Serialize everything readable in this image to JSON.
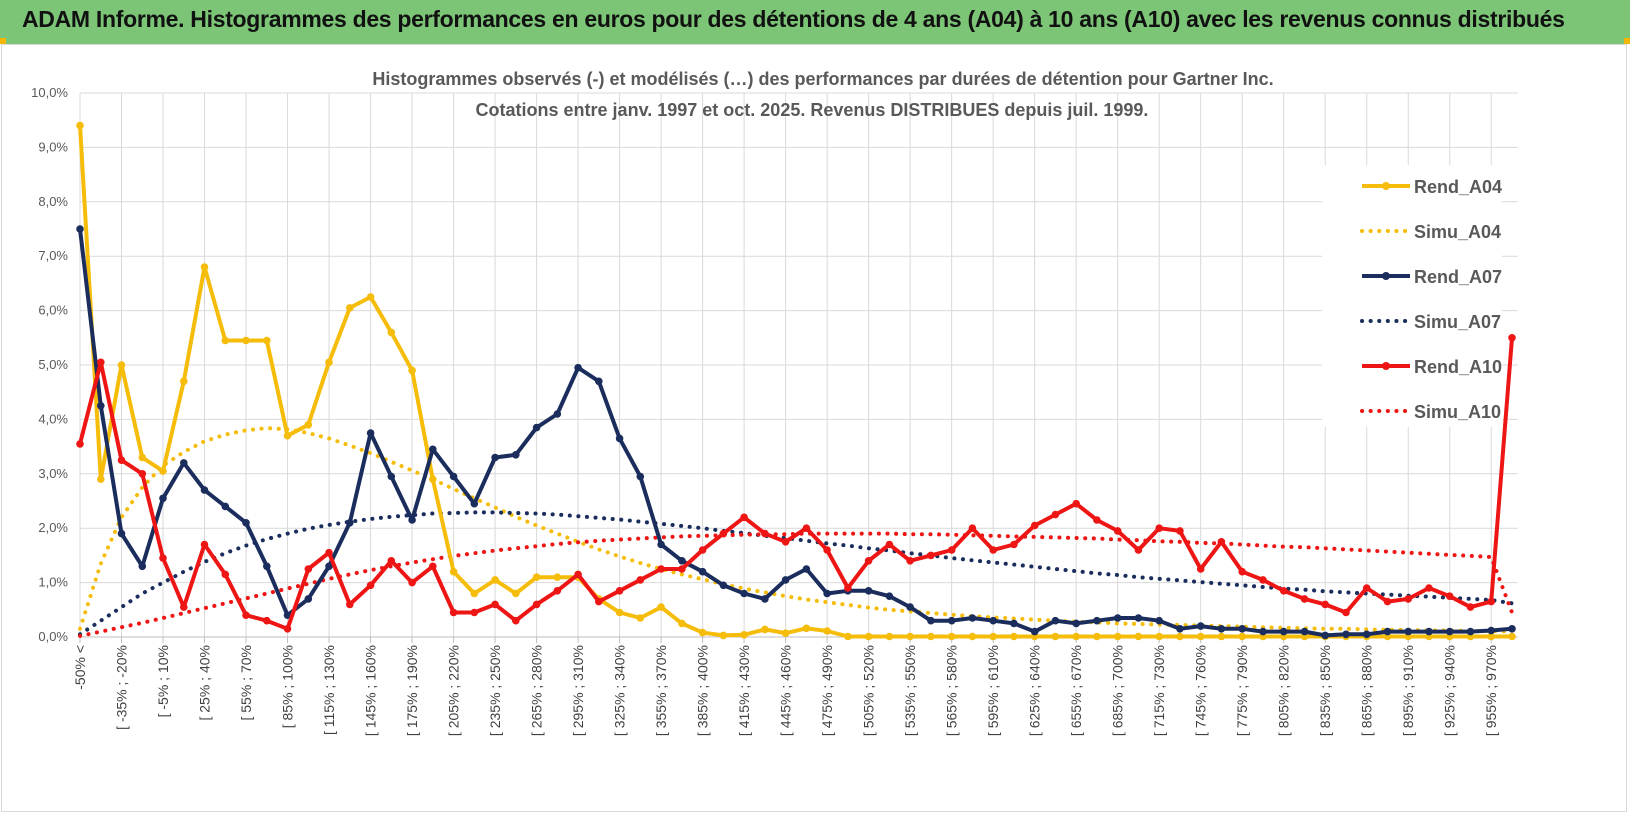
{
  "banner": {
    "title": "ADAM Informe. Histogrammes des performances en euros pour des détentions de 4 ans (A04) à 10 ans (A10) avec les revenus connus distribués"
  },
  "colors": {
    "banner": "#7cc576",
    "a04": "#f5bd0a",
    "a07": "#1a2d5c",
    "a10": "#ee1515",
    "grid": "#d9d9d9"
  },
  "chart_data": {
    "type": "line",
    "title": "Histogrammes observés (-) et modélisés (…) des performances par durées de détention pour Gartner Inc.",
    "subtitle": "Cotations entre janv. 1997 et oct. 2025. Revenus DISTRIBUES depuis juil. 1999.",
    "xlabel": "",
    "ylabel": "",
    "ylim": [
      0,
      10
    ],
    "grid": true,
    "legend_position": "right",
    "y_ticks": [
      "0,0%",
      "1,0%",
      "2,0%",
      "3,0%",
      "4,0%",
      "5,0%",
      "6,0%",
      "7,0%",
      "8,0%",
      "9,0%",
      "10,0%"
    ],
    "x_tick_labels": [
      "-50% <",
      "[ -35% ; -20%",
      "[ -5% ; 10%",
      "[ 25% ; 40%",
      "[ 55% ; 70%",
      "[ 85% ; 100%",
      "[ 115% ; 130%",
      "[ 145% ; 160%",
      "[ 175% ; 190%",
      "[ 205% ; 220%",
      "[ 235% ; 250%",
      "[ 265% ; 280%",
      "[ 295% ; 310%",
      "[ 325% ; 340%",
      "[ 355% ; 370%",
      "[ 385% ; 400%",
      "[ 415% ; 430%",
      "[ 445% ; 460%",
      "[ 475% ; 490%",
      "[ 505% ; 520%",
      "[ 535% ; 550%",
      "[ 565% ; 580%",
      "[ 595% ; 610%",
      "[ 625% ; 640%",
      "[ 655% ; 670%",
      "[ 685% ; 700%",
      "[ 715% ; 730%",
      "[ 745% ; 760%",
      "[ 775% ; 790%",
      "[ 805% ; 820%",
      "[ 835% ; 850%",
      "[ 865% ; 880%",
      "[ 895% ; 910%",
      "[ 925% ; 940%",
      "[ 955% ; 970%"
    ],
    "n_categories": 70,
    "series": [
      {
        "name": "Rend_A04",
        "style": "solid",
        "color": "#f5bd0a",
        "values": [
          9.4,
          2.9,
          5.0,
          3.3,
          3.05,
          4.7,
          6.8,
          5.45,
          5.45,
          5.45,
          3.7,
          3.9,
          5.05,
          6.05,
          6.25,
          5.6,
          4.9,
          2.9,
          1.2,
          0.8,
          1.05,
          0.8,
          1.1,
          1.1,
          1.1,
          0.7,
          0.45,
          0.35,
          0.55,
          0.25,
          0.08,
          0.03,
          0.04,
          0.14,
          0.07,
          0.16,
          0.11,
          0.01,
          0.01,
          0.01,
          0.01,
          0.01,
          0.01,
          0.01,
          0.01,
          0.01,
          0.01,
          0.01,
          0.01,
          0.01,
          0.01,
          0.01,
          0.01,
          0.01,
          0.01,
          0.01,
          0.01,
          0.01,
          0.01,
          0.01,
          0.01,
          0.01,
          0.01,
          0.01,
          0.01,
          0.01,
          0.01,
          0.01,
          0.01,
          0.01
        ]
      },
      {
        "name": "Simu_A04",
        "style": "dotted",
        "color": "#f5bd0a",
        "values": [
          0.15,
          1.35,
          2.2,
          2.75,
          3.15,
          3.4,
          3.6,
          3.72,
          3.8,
          3.84,
          3.82,
          3.75,
          3.65,
          3.52,
          3.38,
          3.22,
          3.06,
          2.9,
          2.72,
          2.55,
          2.38,
          2.21,
          2.05,
          1.9,
          1.75,
          1.61,
          1.48,
          1.36,
          1.25,
          1.15,
          1.06,
          0.97,
          0.89,
          0.82,
          0.75,
          0.69,
          0.64,
          0.59,
          0.54,
          0.5,
          0.47,
          0.44,
          0.41,
          0.38,
          0.36,
          0.34,
          0.32,
          0.3,
          0.28,
          0.27,
          0.25,
          0.24,
          0.23,
          0.22,
          0.21,
          0.2,
          0.19,
          0.18,
          0.17,
          0.16,
          0.15,
          0.15,
          0.14,
          0.13,
          0.13,
          0.12,
          0.12,
          0.11,
          0.11,
          0.1
        ]
      },
      {
        "name": "Rend_A07",
        "style": "solid",
        "color": "#1a2d5c",
        "values": [
          7.5,
          4.25,
          1.9,
          1.3,
          2.55,
          3.2,
          2.7,
          2.4,
          2.1,
          1.3,
          0.4,
          0.7,
          1.3,
          2.1,
          3.75,
          2.95,
          2.15,
          3.45,
          2.95,
          2.45,
          3.3,
          3.35,
          3.85,
          4.1,
          4.95,
          4.7,
          3.65,
          2.95,
          1.7,
          1.4,
          1.2,
          0.95,
          0.8,
          0.7,
          1.05,
          1.25,
          0.8,
          0.85,
          0.85,
          0.75,
          0.55,
          0.3,
          0.3,
          0.35,
          0.3,
          0.25,
          0.1,
          0.3,
          0.25,
          0.3,
          0.35,
          0.35,
          0.3,
          0.15,
          0.2,
          0.15,
          0.15,
          0.1,
          0.1,
          0.1,
          0.03,
          0.05,
          0.05,
          0.1,
          0.1,
          0.1,
          0.1,
          0.1,
          0.12,
          0.15
        ]
      },
      {
        "name": "Simu_A07",
        "style": "dotted",
        "color": "#1a2d5c",
        "values": [
          0.05,
          0.3,
          0.55,
          0.8,
          1.0,
          1.2,
          1.38,
          1.54,
          1.68,
          1.8,
          1.9,
          1.99,
          2.06,
          2.12,
          2.17,
          2.21,
          2.24,
          2.27,
          2.28,
          2.29,
          2.29,
          2.28,
          2.27,
          2.25,
          2.22,
          2.19,
          2.16,
          2.12,
          2.08,
          2.04,
          2.0,
          1.95,
          1.91,
          1.86,
          1.82,
          1.77,
          1.72,
          1.68,
          1.63,
          1.59,
          1.54,
          1.5,
          1.45,
          1.41,
          1.37,
          1.33,
          1.29,
          1.25,
          1.21,
          1.17,
          1.14,
          1.1,
          1.07,
          1.04,
          1.01,
          0.98,
          0.95,
          0.92,
          0.89,
          0.87,
          0.84,
          0.82,
          0.8,
          0.78,
          0.76,
          0.74,
          0.72,
          0.7,
          0.68,
          0.62
        ]
      },
      {
        "name": "Rend_A10",
        "style": "solid",
        "color": "#ee1515",
        "values": [
          3.55,
          5.05,
          3.25,
          3.0,
          1.45,
          0.55,
          1.7,
          1.15,
          0.4,
          0.3,
          0.15,
          1.25,
          1.55,
          0.6,
          0.95,
          1.4,
          1.0,
          1.3,
          0.45,
          0.45,
          0.6,
          0.3,
          0.6,
          0.85,
          1.15,
          0.65,
          0.85,
          1.05,
          1.25,
          1.25,
          1.6,
          1.9,
          2.2,
          1.9,
          1.75,
          2.0,
          1.6,
          0.9,
          1.4,
          1.7,
          1.4,
          1.5,
          1.6,
          2.0,
          1.6,
          1.7,
          2.05,
          2.25,
          2.45,
          2.15,
          1.95,
          1.6,
          2.0,
          1.95,
          1.25,
          1.75,
          1.2,
          1.05,
          0.85,
          0.7,
          0.6,
          0.45,
          0.9,
          0.65,
          0.7,
          0.9,
          0.75,
          0.55,
          0.65,
          5.5
        ]
      },
      {
        "name": "Simu_A10",
        "style": "dotted",
        "color": "#ee1515",
        "values": [
          0.02,
          0.1,
          0.18,
          0.26,
          0.35,
          0.44,
          0.53,
          0.62,
          0.71,
          0.8,
          0.89,
          0.98,
          1.07,
          1.15,
          1.23,
          1.3,
          1.37,
          1.43,
          1.49,
          1.54,
          1.59,
          1.63,
          1.67,
          1.71,
          1.74,
          1.77,
          1.79,
          1.81,
          1.83,
          1.85,
          1.86,
          1.87,
          1.88,
          1.89,
          1.89,
          1.9,
          1.9,
          1.9,
          1.9,
          1.9,
          1.89,
          1.89,
          1.88,
          1.87,
          1.86,
          1.85,
          1.84,
          1.83,
          1.82,
          1.81,
          1.79,
          1.78,
          1.76,
          1.75,
          1.73,
          1.72,
          1.7,
          1.68,
          1.66,
          1.65,
          1.63,
          1.61,
          1.59,
          1.57,
          1.55,
          1.53,
          1.51,
          1.49,
          1.47,
          0.45
        ]
      }
    ]
  }
}
